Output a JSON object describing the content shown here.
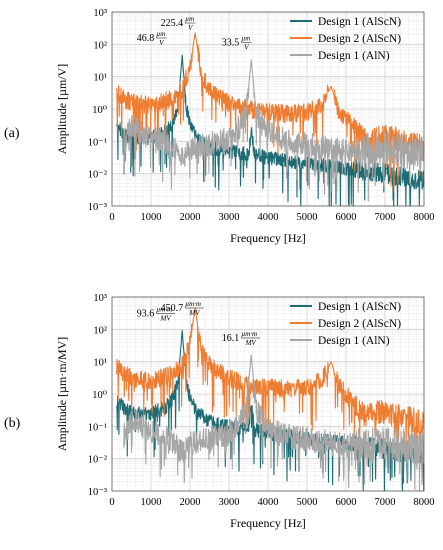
{
  "colors": {
    "design1_alscn": "#1d6b73",
    "design2_alscn": "#ee7d32",
    "design1_aln": "#a6a6a6",
    "grid_major": "#cfcfcf",
    "grid_minor": "#ececec"
  },
  "chart_data": [
    {
      "type": "line",
      "panel_label": "(a)",
      "xlabel": "Frequency [Hz]",
      "ylabel": "Amplitude [µm/V]",
      "xlim": [
        0,
        8000
      ],
      "ylim": [
        0.001,
        1000
      ],
      "yscale": "log",
      "grid": true,
      "legend_position": "top-right",
      "x_ticks": [
        "0",
        "1000",
        "2000",
        "3000",
        "4000",
        "5000",
        "6000",
        "7000",
        "8000"
      ],
      "y_ticks": [
        "10⁻³",
        "10⁻²",
        "10⁻¹",
        "10⁰",
        "10¹",
        "10²",
        "10³"
      ],
      "series": [
        {
          "name": "Design 1 (AlScN)",
          "color": "#1d6b73",
          "peaks": [
            [
              1800,
              46.8
            ]
          ],
          "x": [
            100,
            500,
            1000,
            1400,
            1600,
            1700,
            1800,
            1900,
            2000,
            2200,
            2600,
            3000,
            3500,
            3580,
            3650,
            4000,
            5000,
            6000,
            7000,
            8000
          ],
          "y": [
            0.3,
            0.12,
            0.13,
            0.2,
            0.5,
            1.5,
            46.8,
            1.2,
            0.35,
            0.12,
            0.06,
            0.05,
            0.04,
            0.25,
            0.04,
            0.03,
            0.02,
            0.015,
            0.01,
            0.006
          ]
        },
        {
          "name": "Design 2 (AlScN)",
          "color": "#ee7d32",
          "peaks": [
            [
              2130,
              225.4
            ],
            [
              5620,
              5
            ]
          ],
          "x": [
            100,
            300,
            600,
            1000,
            1500,
            1800,
            2000,
            2130,
            2300,
            2600,
            3000,
            3500,
            4000,
            4500,
            5000,
            5400,
            5620,
            5800,
            6200,
            6500,
            7000,
            7500,
            8000
          ],
          "y": [
            4,
            2,
            1.5,
            1.3,
            2,
            4,
            20,
            225.4,
            10,
            3,
            1.5,
            1,
            0.8,
            0.7,
            0.8,
            1.5,
            5,
            1,
            0.25,
            0.1,
            0.15,
            0.1,
            0.06
          ]
        },
        {
          "name": "Design 1 (AlN)",
          "color": "#a6a6a6",
          "peaks": [
            [
              3570,
              33.5
            ]
          ],
          "x": [
            300,
            500,
            1000,
            1500,
            1800,
            2000,
            2500,
            3000,
            3300,
            3450,
            3570,
            3700,
            3900,
            4500,
            5000,
            6000,
            7000,
            8000
          ],
          "y": [
            0.1,
            0.3,
            0.15,
            0.08,
            0.03,
            0.06,
            0.08,
            0.12,
            0.3,
            1,
            33.5,
            0.7,
            0.25,
            0.1,
            0.08,
            0.05,
            0.06,
            0.04
          ]
        }
      ],
      "annotations": [
        {
          "text": "46.8",
          "numerator": "µm",
          "denominator": "V",
          "x": 1800,
          "y": 46.8
        },
        {
          "text": "225.4",
          "numerator": "µm",
          "denominator": "V",
          "x": 2130,
          "y": 225.4
        },
        {
          "text": "33.5",
          "numerator": "µm",
          "denominator": "V",
          "x": 3570,
          "y": 33.5
        }
      ]
    },
    {
      "type": "line",
      "panel_label": "(b)",
      "xlabel": "Frequency [Hz]",
      "ylabel": "Amplitude [µm·m/MV]",
      "xlim": [
        0,
        8000
      ],
      "ylim": [
        0.001,
        1000
      ],
      "yscale": "log",
      "grid": true,
      "legend_position": "top-right",
      "x_ticks": [
        "0",
        "1000",
        "2000",
        "3000",
        "4000",
        "5000",
        "6000",
        "7000",
        "8000"
      ],
      "y_ticks": [
        "10⁻³",
        "10⁻²",
        "10⁻¹",
        "10⁰",
        "10¹",
        "10²",
        "10³"
      ],
      "series": [
        {
          "name": "Design 1 (AlScN)",
          "color": "#1d6b73",
          "peaks": [
            [
              1800,
              93.6
            ]
          ],
          "x": [
            100,
            500,
            1000,
            1400,
            1600,
            1700,
            1800,
            1900,
            2000,
            2200,
            2600,
            3000,
            3500,
            3580,
            3650,
            4000,
            5000,
            6000,
            7000,
            8000
          ],
          "y": [
            0.6,
            0.25,
            0.25,
            0.4,
            1,
            3,
            93.6,
            2.4,
            0.7,
            0.25,
            0.12,
            0.1,
            0.08,
            0.5,
            0.08,
            0.06,
            0.04,
            0.03,
            0.02,
            0.012
          ]
        },
        {
          "name": "Design 2 (AlScN)",
          "color": "#ee7d32",
          "peaks": [
            [
              2130,
              450.7
            ],
            [
              5620,
              10
            ]
          ],
          "x": [
            100,
            300,
            600,
            1000,
            1500,
            1800,
            2000,
            2130,
            2300,
            2600,
            3000,
            3500,
            4000,
            4500,
            5000,
            5400,
            5620,
            5800,
            6200,
            6500,
            7000,
            7500,
            8000
          ],
          "y": [
            8,
            4,
            3,
            2.6,
            4,
            8,
            40,
            450.7,
            20,
            6,
            3,
            2,
            1.6,
            1.4,
            1.6,
            3,
            10,
            2,
            0.5,
            0.2,
            0.3,
            0.2,
            0.12
          ]
        },
        {
          "name": "Design 1 (AlN)",
          "color": "#a6a6a6",
          "peaks": [
            [
              3570,
              16.1
            ]
          ],
          "x": [
            300,
            500,
            1000,
            1500,
            1800,
            2000,
            2500,
            3000,
            3300,
            3450,
            3570,
            3700,
            3900,
            4500,
            5000,
            6000,
            7000,
            8000
          ],
          "y": [
            0.05,
            0.15,
            0.07,
            0.04,
            0.015,
            0.03,
            0.04,
            0.06,
            0.15,
            0.5,
            16.1,
            0.35,
            0.12,
            0.05,
            0.04,
            0.025,
            0.03,
            0.02
          ]
        }
      ],
      "annotations": [
        {
          "text": "93.6",
          "numerator": "µm·m",
          "denominator": "MV",
          "x": 1800,
          "y": 93.6
        },
        {
          "text": "450.7",
          "numerator": "µm·m",
          "denominator": "MV",
          "x": 2130,
          "y": 450.7
        },
        {
          "text": "16.1",
          "numerator": "µm·m",
          "denominator": "MV",
          "x": 3570,
          "y": 16.1
        }
      ]
    }
  ]
}
